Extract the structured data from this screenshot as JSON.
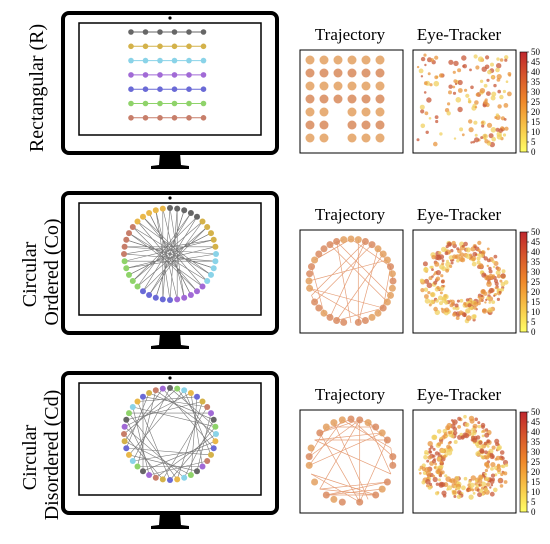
{
  "rows": [
    {
      "label_lines": [
        "Rectangular (R)"
      ],
      "layout": "rect"
    },
    {
      "label_lines": [
        "Circular",
        "Ordered (Co)"
      ],
      "layout": "circ-ordered"
    },
    {
      "label_lines": [
        "Circular",
        "Disordered (Cd)"
      ],
      "layout": "circ-disordered"
    }
  ],
  "panel_titles": {
    "trajectory": "Trajectory",
    "eye_tracker": "Eye-Tracker"
  },
  "colorbar": {
    "ticks": [
      "50",
      "45",
      "40",
      "35",
      "30",
      "25",
      "20",
      "15",
      "10",
      "5",
      "0"
    ],
    "color_high": "#c0272d",
    "color_mid": "#f08a2a",
    "color_low": "#ffff66"
  },
  "node_colors": [
    "#666666",
    "#d4b24a",
    "#8ad3e8",
    "#a16ad6",
    "#6a6ad6",
    "#8fd36a",
    "#c77e6a",
    "#e9b84a"
  ],
  "dot_colors": {
    "trajectory": "#e3a060",
    "eye_dark": "#c85a3a",
    "eye_light": "#f0d060"
  }
}
